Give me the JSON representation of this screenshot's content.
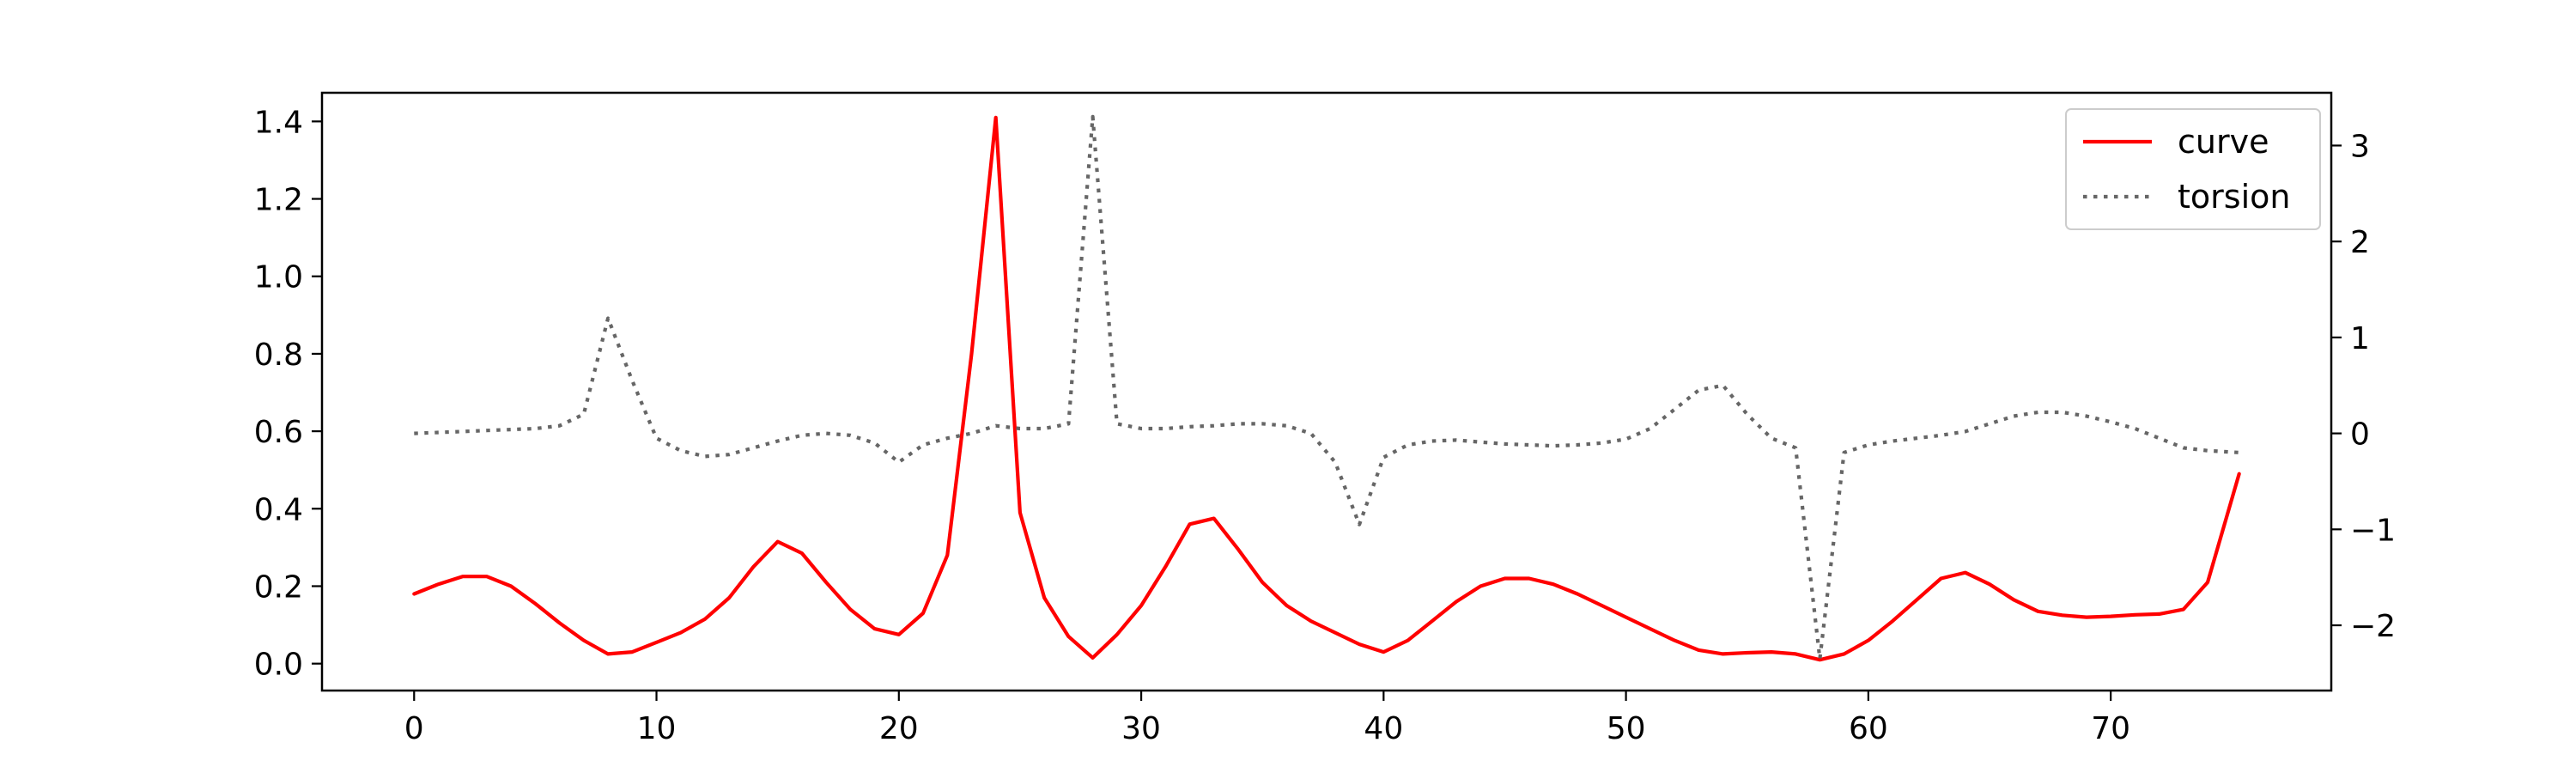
{
  "chart_data": {
    "type": "line",
    "title": "",
    "xlabel": "",
    "ylabel": "",
    "y2label": "",
    "xlim": [
      -3.8,
      79.1
    ],
    "ylim": [
      -0.0695,
      1.474
    ],
    "y2lim": [
      -2.68,
      3.55
    ],
    "xticks": [
      "0",
      "10",
      "20",
      "30",
      "40",
      "50",
      "60",
      "70"
    ],
    "yticks": [
      "0.0",
      "0.2",
      "0.4",
      "0.6",
      "0.8",
      "1.0",
      "1.2",
      "1.4"
    ],
    "y2ticks": [
      "−2",
      "−1",
      "0",
      "1",
      "2",
      "3"
    ],
    "grid": false,
    "legend_position": "top-right",
    "series": [
      {
        "name": "curve",
        "axis": "left",
        "color": "#ff0000",
        "style": "solid",
        "x": [
          0,
          1,
          2,
          3,
          4,
          5,
          6,
          7,
          8,
          9,
          10,
          11,
          12,
          13,
          14,
          15,
          16,
          17,
          18,
          19,
          20,
          21,
          22,
          23,
          24,
          25,
          26,
          27,
          28,
          29,
          30,
          31,
          32,
          33,
          34,
          35,
          36,
          37,
          38,
          39,
          40,
          41,
          42,
          43,
          44,
          45,
          46,
          47,
          48,
          49,
          50,
          51,
          52,
          53,
          54,
          55,
          56,
          57,
          58,
          59,
          60,
          61,
          62,
          63,
          64,
          65,
          66,
          67,
          68,
          69,
          70,
          71,
          72,
          73,
          74,
          75.3
        ],
        "values": [
          0.18,
          0.205,
          0.225,
          0.225,
          0.2,
          0.155,
          0.105,
          0.06,
          0.025,
          0.03,
          0.055,
          0.08,
          0.115,
          0.17,
          0.25,
          0.315,
          0.285,
          0.21,
          0.14,
          0.09,
          0.075,
          0.13,
          0.28,
          0.8,
          1.41,
          0.39,
          0.17,
          0.07,
          0.015,
          0.075,
          0.15,
          0.25,
          0.36,
          0.375,
          0.295,
          0.21,
          0.15,
          0.11,
          0.08,
          0.05,
          0.03,
          0.06,
          0.11,
          0.16,
          0.2,
          0.22,
          0.22,
          0.205,
          0.18,
          0.15,
          0.12,
          0.09,
          0.06,
          0.035,
          0.025,
          0.028,
          0.03,
          0.025,
          0.01,
          0.025,
          0.06,
          0.11,
          0.165,
          0.22,
          0.235,
          0.205,
          0.165,
          0.135,
          0.125,
          0.12,
          0.122,
          0.126,
          0.128,
          0.14,
          0.21,
          0.49
        ]
      },
      {
        "name": "torsion",
        "axis": "right",
        "color": "#666666",
        "style": "dotted",
        "x": [
          0,
          1,
          2,
          3,
          4,
          5,
          6,
          7,
          8,
          9,
          10,
          11,
          12,
          13,
          14,
          15,
          16,
          17,
          18,
          19,
          20,
          21,
          22,
          23,
          24,
          25,
          26,
          27,
          28,
          29,
          30,
          31,
          32,
          33,
          34,
          35,
          36,
          37,
          38,
          39,
          40,
          41,
          42,
          43,
          44,
          45,
          46,
          47,
          48,
          49,
          50,
          51,
          52,
          53,
          54,
          55,
          56,
          57,
          58,
          59,
          60,
          61,
          62,
          63,
          64,
          65,
          66,
          67,
          68,
          69,
          70,
          71,
          72,
          73,
          74,
          75.3
        ],
        "values": [
          0.0,
          0.01,
          0.02,
          0.03,
          0.04,
          0.05,
          0.08,
          0.2,
          1.2,
          0.55,
          -0.05,
          -0.18,
          -0.24,
          -0.22,
          -0.15,
          -0.08,
          -0.02,
          0.0,
          -0.02,
          -0.1,
          -0.3,
          -0.12,
          -0.05,
          0.0,
          0.08,
          0.05,
          0.05,
          0.1,
          3.3,
          0.1,
          0.05,
          0.05,
          0.07,
          0.08,
          0.1,
          0.1,
          0.08,
          0.0,
          -0.3,
          -0.95,
          -0.25,
          -0.12,
          -0.08,
          -0.07,
          -0.09,
          -0.11,
          -0.12,
          -0.13,
          -0.12,
          -0.1,
          -0.06,
          0.05,
          0.25,
          0.45,
          0.5,
          0.2,
          -0.05,
          -0.15,
          -2.35,
          -0.2,
          -0.12,
          -0.08,
          -0.05,
          -0.02,
          0.02,
          0.1,
          0.18,
          0.22,
          0.22,
          0.18,
          0.12,
          0.05,
          -0.05,
          -0.15,
          -0.18,
          -0.2
        ]
      }
    ]
  }
}
